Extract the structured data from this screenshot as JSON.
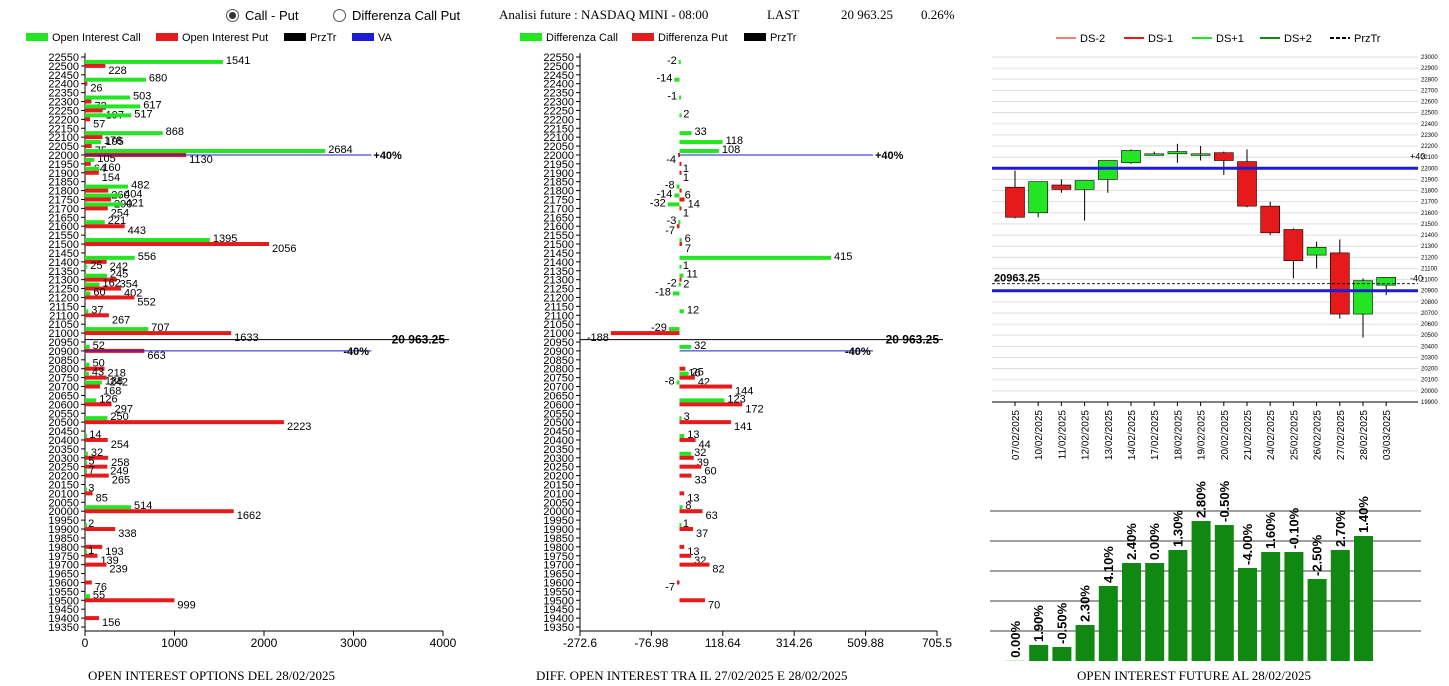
{
  "topbar": {
    "radio_call_put": "Call - Put",
    "radio_diff": "Differenza Call Put",
    "selected": "call_put",
    "future_title": "Analisi future : NASDAQ MINI - 08:00",
    "last_label": "LAST",
    "last_value": "20 963.25",
    "last_change": "0.26%"
  },
  "colors": {
    "call": "#22e622",
    "put": "#e61a1a",
    "va": "#1c1cd6",
    "price": "#000000",
    "dark_green": "#118811"
  },
  "chart_data": [
    {
      "id": "oi",
      "type": "bar",
      "orientation": "horizontal",
      "title": "OPEN INTEREST OPTIONS DEL 28/02/2025",
      "legend": [
        "Open Interest Call",
        "Open Interest Put",
        "PrzTr",
        "VA"
      ],
      "ylim": [
        19350,
        22550
      ],
      "ytick_step": 50,
      "xlim": [
        0,
        4000
      ],
      "xticks": [
        "0",
        "1000",
        "2000",
        "3000",
        "4000"
      ],
      "strikes": [
        22500,
        22400,
        22300,
        22250,
        22200,
        22100,
        22050,
        22000,
        21950,
        21900,
        21800,
        21750,
        21700,
        21600,
        21500,
        21400,
        21350,
        21300,
        21250,
        21200,
        21100,
        21000,
        20900,
        20800,
        20750,
        20700,
        20600,
        20500,
        20400,
        20300,
        20250,
        20200,
        20100,
        20000,
        19900,
        19800,
        19750,
        19700,
        19600,
        19500,
        19400
      ],
      "calls": [
        1541,
        680,
        503,
        617,
        517,
        868,
        178,
        2684,
        105,
        160,
        482,
        404,
        421,
        221,
        1395,
        556,
        25,
        245,
        162,
        60,
        37,
        707,
        52,
        50,
        43,
        188,
        126,
        250,
        14,
        32,
        5,
        7,
        3,
        514,
        2,
        0,
        1,
        0,
        0,
        55,
        0
      ],
      "puts": [
        228,
        26,
        72,
        197,
        57,
        195,
        75,
        1130,
        64,
        154,
        260,
        290,
        254,
        443,
        2056,
        242,
        0,
        354,
        402,
        552,
        267,
        1633,
        663,
        218,
        242,
        168,
        297,
        2223,
        254,
        258,
        249,
        265,
        85,
        1662,
        338,
        193,
        139,
        239,
        76,
        999,
        156
      ],
      "call_labels": [
        "1541",
        "680",
        "503",
        "617",
        "517",
        "868",
        "178",
        "2684",
        "105",
        "160",
        "482",
        "404",
        "421",
        "221",
        "1395",
        "556",
        "25",
        "245",
        "162",
        "60",
        "37",
        "707",
        "52",
        "50",
        "43",
        "188",
        "126",
        "250",
        "14",
        "32",
        "5",
        "7",
        "3",
        "514",
        "2",
        "",
        "1",
        "",
        "",
        "55",
        ""
      ],
      "put_labels": [
        "228",
        "26",
        "72",
        "197",
        "57",
        "195",
        "75",
        "1130",
        "64",
        "154",
        "260",
        "290",
        "254",
        "443",
        "2056",
        "242",
        "",
        "354",
        "402",
        "552",
        "267",
        "1633",
        "663",
        "218",
        "242",
        "168",
        "297",
        "2223",
        "254",
        "258",
        "249",
        "265",
        "85",
        "1662",
        "338",
        "193",
        "139",
        "239",
        "76",
        "999",
        "156"
      ],
      "price": 20963.25,
      "price_label": "20 963.25",
      "va_upper": 22000,
      "va_lower": 20900,
      "va_upper_value": 3200,
      "va_lower_value": 3200,
      "va_upper_label": "+40%",
      "va_lower_label": "-40%"
    },
    {
      "id": "diff",
      "type": "bar",
      "orientation": "horizontal",
      "title": "DIFF. OPEN INTEREST TRA IL 27/02/2025 E 28/02/2025",
      "legend": [
        "Differenza Call",
        "Differenza Put",
        "PrzTr"
      ],
      "ylim": [
        19350,
        22550
      ],
      "ytick_step": 50,
      "xlim": [
        -272.6,
        705.5
      ],
      "xticks": [
        "-272.6",
        "-76.98",
        "118.64",
        "314.26",
        "509.88",
        "705.5"
      ],
      "strikes": [
        22500,
        22400,
        22300,
        22200,
        22100,
        22050,
        22000,
        21950,
        21900,
        21800,
        21750,
        21700,
        21600,
        21500,
        21400,
        21350,
        21300,
        21250,
        21200,
        21100,
        21000,
        20900,
        20800,
        20750,
        20700,
        20600,
        20500,
        20400,
        20300,
        20250,
        20200,
        20100,
        20000,
        19900,
        19800,
        19750,
        19700,
        19600,
        19500
      ],
      "calls": [
        -2,
        -14,
        -1,
        2,
        33,
        118,
        108,
        0,
        0,
        -8,
        -14,
        -32,
        -3,
        6,
        415,
        1,
        11,
        -2,
        -18,
        12,
        -29,
        32,
        0,
        25,
        -8,
        123,
        3,
        13,
        32,
        0,
        0,
        0,
        8,
        1,
        0,
        0,
        0,
        0,
        0
      ],
      "puts": [
        0,
        0,
        0,
        0,
        0,
        0,
        -4,
        1,
        1,
        6,
        14,
        1,
        -7,
        7,
        0,
        0,
        2,
        0,
        0,
        0,
        -188,
        0,
        16,
        42,
        144,
        172,
        141,
        44,
        39,
        60,
        33,
        13,
        63,
        37,
        13,
        32,
        82,
        -7,
        70
      ],
      "call_labels": [
        "-2",
        "-14",
        "-1",
        "2",
        "33",
        "118",
        "108",
        "",
        "",
        "-8",
        "-14",
        "-32",
        "-3",
        "6",
        "415",
        "1",
        "11",
        "-2",
        "-18",
        "12",
        "-29",
        "32",
        "",
        "25",
        "-8",
        "123",
        "3",
        "13",
        "32",
        "",
        "",
        "",
        "8",
        "1",
        "",
        "",
        "",
        "",
        ""
      ],
      "put_labels": [
        "",
        "",
        "",
        "",
        "",
        "",
        "-4",
        "1",
        "1",
        "6",
        "14",
        "1",
        "-7",
        "7",
        "",
        "",
        "2",
        "",
        "",
        "",
        "-188",
        "",
        "16",
        "42",
        "144",
        "172",
        "141",
        "44",
        "39",
        "60",
        "33",
        "13",
        "63",
        "37",
        "13",
        "32",
        "82",
        "-7",
        "70"
      ],
      "price": 20963.25,
      "price_label": "20 963.25",
      "va_upper": 22000,
      "va_lower": 20900,
      "va_upper_value": 530,
      "va_lower_value": 530,
      "va_upper_label": "+40%",
      "va_lower_label": "-40%"
    },
    {
      "id": "candles",
      "type": "candlestick",
      "legend": [
        "DS-2",
        "DS-1",
        "DS+1",
        "DS+2",
        "PrzTr"
      ],
      "ylim": [
        19900,
        23000
      ],
      "ytick_step": 100,
      "dates": [
        "07/02/2025",
        "10/02/2025",
        "11/02/2025",
        "12/02/2025",
        "13/02/2025",
        "14/02/2025",
        "17/02/2025",
        "18/02/2025",
        "19/02/2025",
        "20/02/2025",
        "21/02/2025",
        "24/02/2025",
        "25/02/2025",
        "26/02/2025",
        "27/02/2025",
        "28/02/2025",
        "03/03/2025"
      ],
      "open": [
        21830,
        21600,
        21850,
        21810,
        21900,
        22050,
        22130,
        22130,
        22130,
        22140,
        22060,
        21660,
        21450,
        21220,
        21240,
        20690,
        20950
      ],
      "high": [
        21980,
        21880,
        21900,
        21880,
        22070,
        22170,
        22150,
        22220,
        22200,
        22150,
        22170,
        21700,
        21460,
        21340,
        21360,
        21010,
        21010
      ],
      "low": [
        21550,
        21560,
        21780,
        21530,
        21780,
        22040,
        22120,
        22050,
        22070,
        21940,
        21650,
        21400,
        21010,
        21100,
        20650,
        20480,
        20860
      ],
      "close": [
        21560,
        21880,
        21810,
        21890,
        22070,
        22160,
        22130,
        22150,
        22130,
        22070,
        21660,
        21420,
        21170,
        21290,
        20690,
        20990,
        21020
      ],
      "ds_upper": 22000,
      "ds_lower": 20900,
      "ds_upper_label": "+40",
      "ds_lower_label": "-40",
      "price": 20963.25,
      "price_label": "20963.25"
    },
    {
      "id": "oi_future",
      "type": "bar",
      "title": "OPEN INTEREST FUTURE AL 28/02/2025",
      "values": [
        0.0,
        1.9,
        -0.5,
        2.3,
        4.1,
        2.4,
        0.0,
        1.3,
        2.8,
        -0.5,
        -4.0,
        1.6,
        -0.1,
        -2.5,
        2.7,
        1.4
      ],
      "labels": [
        "0.00%",
        "1.90%",
        "-0.50%",
        "2.30%",
        "4.10%",
        "2.40%",
        "0.00%",
        "1.30%",
        "2.80%",
        "-0.50%",
        "-4.00%",
        "1.60%",
        "-0.10%",
        "-2.50%",
        "2.70%",
        "1.40%"
      ],
      "levels": [
        0.2,
        16.0,
        14.0,
        36.0,
        75.0,
        98.0,
        98.0,
        111.0,
        140.0,
        136.0,
        93.0,
        109.0,
        109.0,
        82.0,
        111.0,
        125.0
      ],
      "ymax": 150
    }
  ]
}
